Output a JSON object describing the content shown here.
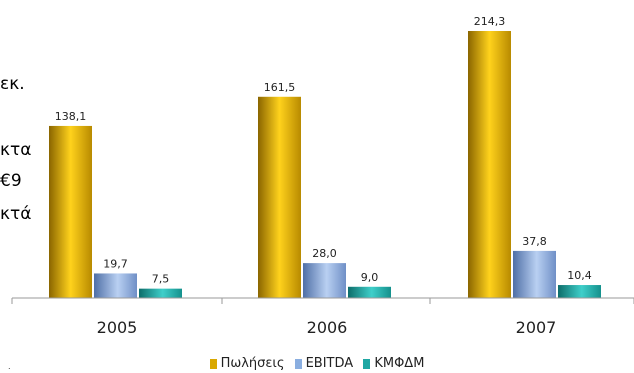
{
  "background_text": {
    "fragments": [
      "εκ.",
      "κτα",
      "€9",
      "κτά"
    ]
  },
  "chart_data": {
    "type": "bar",
    "categories": [
      "2005",
      "2006",
      "2007"
    ],
    "series": [
      {
        "name": "Πωλήσεις",
        "values": [
          138.1,
          161.5,
          214.3
        ],
        "labels": [
          "138,1",
          "161,5",
          "214,3"
        ],
        "color": "#D9A800"
      },
      {
        "name": "EBITDA",
        "values": [
          19.7,
          28.0,
          37.8
        ],
        "labels": [
          "19,7",
          "28,0",
          "37,8"
        ],
        "color": "#8AAEE0"
      },
      {
        "name": "ΚΜΦΔΜ",
        "values": [
          7.5,
          9.0,
          10.4
        ],
        "labels": [
          "7,5",
          "9,0",
          "10,4"
        ],
        "color": "#1FA7A3"
      }
    ],
    "ylim": [
      0,
      214.3
    ],
    "grid": false,
    "legend_position": "bottom"
  },
  "footnote_mark": "."
}
